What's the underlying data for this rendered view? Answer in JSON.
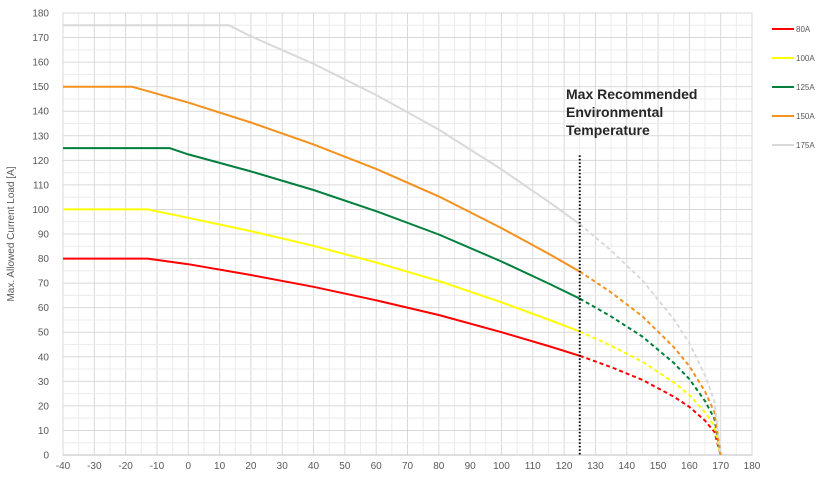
{
  "chart_data": {
    "type": "line",
    "title": "",
    "xlabel": "",
    "ylabel": "Max. Allowed Current Load [A]",
    "xlim": [
      -40,
      180
    ],
    "ylim": [
      0,
      180
    ],
    "xticks": [
      -40,
      -30,
      -20,
      -10,
      0,
      10,
      20,
      30,
      40,
      50,
      60,
      70,
      80,
      90,
      100,
      110,
      120,
      130,
      140,
      150,
      160,
      170,
      180
    ],
    "yticks": [
      0,
      10,
      20,
      30,
      40,
      50,
      60,
      70,
      80,
      90,
      100,
      110,
      120,
      130,
      140,
      150,
      160,
      170,
      180
    ],
    "grid": true,
    "legend_position": "right",
    "series": [
      {
        "name": "80A",
        "color": "#ff0000",
        "x": [
          -40,
          -13,
          0,
          20,
          40,
          60,
          80,
          100,
          115,
          125,
          135,
          145,
          155,
          160,
          165,
          168,
          170
        ],
        "y": [
          80,
          80,
          77.7,
          73.3,
          68.5,
          63.0,
          57.0,
          50.0,
          44.4,
          40.4,
          35.8,
          30.6,
          23.8,
          19.6,
          14.0,
          9.4,
          0
        ]
      },
      {
        "name": "100A",
        "color": "#ffff00",
        "x": [
          -40,
          -13,
          0,
          20,
          40,
          60,
          80,
          100,
          115,
          125,
          135,
          145,
          155,
          160,
          165,
          168,
          170
        ],
        "y": [
          100,
          100,
          96.6,
          91.2,
          85.2,
          78.4,
          70.9,
          62.2,
          55.2,
          50.3,
          44.5,
          38.0,
          29.6,
          24.4,
          17.4,
          11.7,
          0
        ]
      },
      {
        "name": "125A",
        "color": "#00803c",
        "x": [
          -40,
          -6,
          0,
          20,
          40,
          60,
          80,
          100,
          115,
          125,
          135,
          145,
          155,
          160,
          165,
          168,
          170
        ],
        "y": [
          125,
          125,
          122.4,
          115.5,
          107.9,
          99.3,
          89.8,
          78.8,
          69.9,
          63.7,
          56.4,
          48.2,
          37.5,
          30.9,
          22.0,
          14.8,
          0
        ]
      },
      {
        "name": "150A",
        "color": "#f5911e",
        "x": [
          -40,
          -18,
          0,
          20,
          40,
          60,
          80,
          100,
          115,
          125,
          135,
          145,
          155,
          160,
          165,
          168,
          170
        ],
        "y": [
          150,
          150,
          143.5,
          135.4,
          126.5,
          116.5,
          105.3,
          92.4,
          82.0,
          74.7,
          66.2,
          56.5,
          44.0,
          36.2,
          25.8,
          17.4,
          0
        ]
      },
      {
        "name": "175A",
        "color": "#d9d9d9",
        "x": [
          -40,
          13,
          20,
          40,
          60,
          80,
          100,
          115,
          125,
          135,
          145,
          155,
          160,
          165,
          168,
          170
        ],
        "y": [
          175,
          175,
          170.5,
          159.3,
          146.6,
          132.5,
          116.3,
          103.2,
          94.0,
          83.3,
          71.1,
          55.4,
          45.6,
          32.5,
          21.9,
          0
        ]
      }
    ],
    "solid_until_x": 125,
    "dashed_after_x": 125,
    "annotation": {
      "text": [
        "Max Recommended",
        "Environmental",
        "Temperature"
      ],
      "x": 125,
      "y_top": 122,
      "line_style": "dotted",
      "color": "#000000"
    }
  }
}
